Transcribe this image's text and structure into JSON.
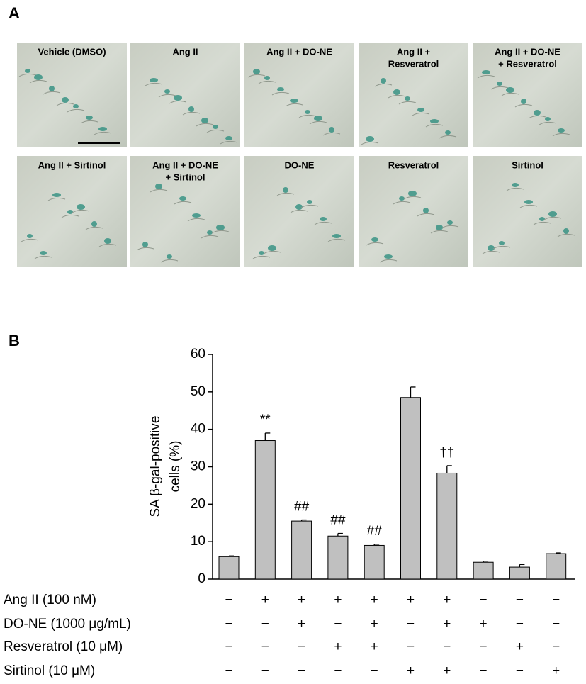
{
  "panel_a": {
    "label": "A",
    "images": [
      {
        "lines": [
          "Vehicle (DMSO)"
        ]
      },
      {
        "lines": [
          "Ang II"
        ]
      },
      {
        "lines": [
          "Ang II + DO-NE"
        ]
      },
      {
        "lines": [
          "Ang II +",
          "Resveratrol"
        ]
      },
      {
        "lines": [
          "Ang II + DO-NE",
          "+ Resveratrol"
        ]
      },
      {
        "lines": [
          "Ang II + Sirtinol"
        ]
      },
      {
        "lines": [
          "Ang II + DO-NE",
          "+ Sirtinol"
        ]
      },
      {
        "lines": [
          "DO-NE"
        ]
      },
      {
        "lines": [
          "Resveratrol"
        ]
      },
      {
        "lines": [
          "Sirtinol"
        ]
      }
    ]
  },
  "chart_data": {
    "type": "bar",
    "panel_label": "B",
    "y_label": [
      "SA β-gal-positive",
      "cells (%)"
    ],
    "categories": [
      null,
      null,
      null,
      null,
      null,
      null,
      null,
      null,
      null,
      null
    ],
    "values": [
      6,
      37,
      15.5,
      11.5,
      9,
      48.5,
      28.3,
      4.5,
      3.2,
      6.8
    ],
    "errors": [
      0.2,
      2,
      0.3,
      0.7,
      0.3,
      2.8,
      2,
      0.3,
      0.7,
      0.2
    ],
    "value_annotations": [
      null,
      "**",
      "##",
      "##",
      "##",
      null,
      "††",
      null,
      null,
      null
    ],
    "color": "#c0c0c0",
    "ylim": [
      0,
      60
    ],
    "yticks": [
      0,
      10,
      20,
      30,
      40,
      50,
      60
    ],
    "conditions": [
      {
        "label": "Ang II (100 nM)",
        "signs": [
          "−",
          "+",
          "+",
          "+",
          "+",
          "+",
          "+",
          "−",
          "−",
          "−"
        ]
      },
      {
        "label": "DO-NE (1000 μg/mL)",
        "signs": [
          "−",
          "−",
          "+",
          "−",
          "+",
          "−",
          "+",
          "+",
          "−",
          "−"
        ]
      },
      {
        "label": "Resveratrol (10 μM)",
        "signs": [
          "−",
          "−",
          "−",
          "+",
          "+",
          "−",
          "−",
          "−",
          "+",
          "−"
        ]
      },
      {
        "label": "Sirtinol (10 μM)",
        "signs": [
          "−",
          "−",
          "−",
          "−",
          "−",
          "+",
          "+",
          "−",
          "−",
          "+"
        ]
      }
    ]
  }
}
